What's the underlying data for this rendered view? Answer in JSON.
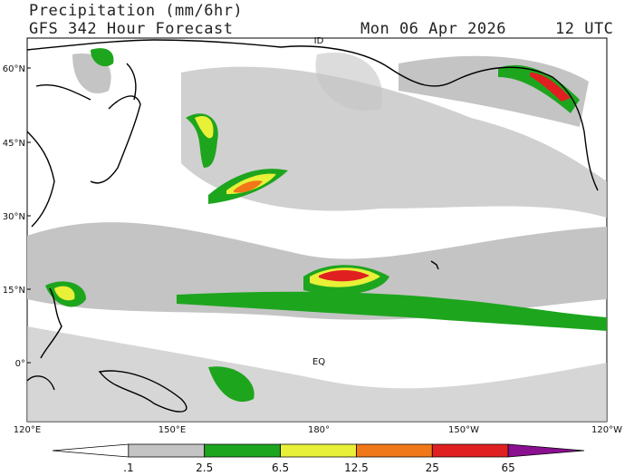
{
  "header": {
    "title": "Precipitation (mm/6hr)",
    "subtitle": "GFS 342 Hour Forecast",
    "date": "Mon 06 Apr 2026",
    "time": "12 UTC"
  },
  "map": {
    "lat_labels": [
      "60°N",
      "45°N",
      "30°N",
      "15°N",
      "0°"
    ],
    "lon_labels": [
      "120°E",
      "150°E",
      "180°",
      "150°W",
      "120°W"
    ],
    "annotations": [
      "ID",
      "EQ"
    ]
  },
  "colorbar": {
    "colors": [
      "#ffffff",
      "#c4c4c4",
      "#1ea51e",
      "#e8f038",
      "#f07818",
      "#e02020",
      "#8a1090"
    ],
    "labels": [
      ".1",
      "2.5",
      "6.5",
      "12.5",
      "25",
      "65"
    ]
  }
}
